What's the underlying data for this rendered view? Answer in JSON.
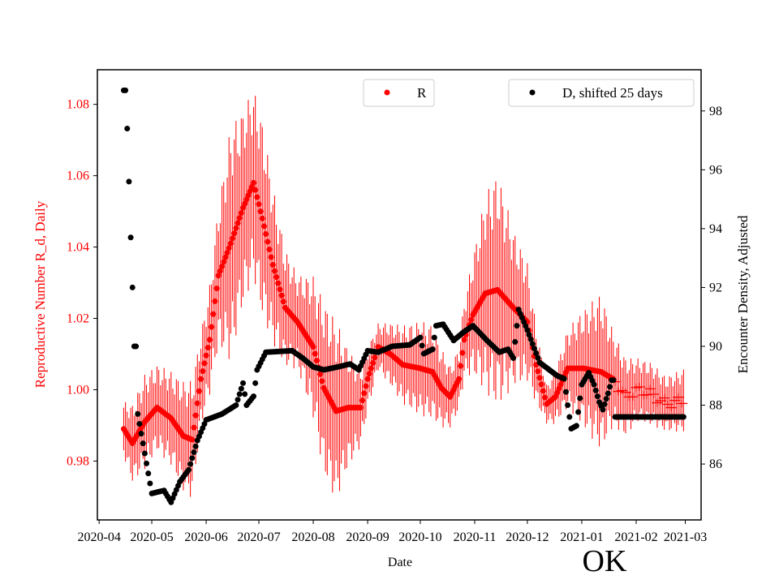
{
  "chart_data": {
    "type": "scatter",
    "title": "OK",
    "xlabel": "Date",
    "ylabel_left": "Reproductive Number R_d, Daily",
    "ylabel_right": "Encounter Density, Adjusted",
    "xlim": [
      "2020-03-31",
      "2021-03-10"
    ],
    "ylim_left": [
      0.9635,
      1.0897
    ],
    "ylim_right": [
      84.1,
      99.4
    ],
    "x_ticks": [
      "2020-04",
      "2020-05",
      "2020-06",
      "2020-07",
      "2020-08",
      "2020-09",
      "2020-10",
      "2020-11",
      "2020-12",
      "2021-01",
      "2021-02",
      "2021-03"
    ],
    "y_ticks_left": [
      "0.98",
      "1.00",
      "1.02",
      "1.04",
      "1.06",
      "1.08"
    ],
    "y_ticks_right": [
      "86",
      "88",
      "90",
      "92",
      "94",
      "96",
      "98"
    ],
    "grid": false,
    "legend": [
      {
        "label": "R",
        "placement": "top-center"
      },
      {
        "label": "D, shifted 25 days",
        "placement": "top-right"
      }
    ],
    "colors": {
      "R": "#ff0000",
      "D": "#000000",
      "left_axis": "#ff0000",
      "right_axis": "#000000"
    },
    "series": [
      {
        "name": "R",
        "axis": "left",
        "points": [
          [
            "2020-04-15",
            0.989,
            0.007
          ],
          [
            "2020-04-20",
            0.985,
            0.01
          ],
          [
            "2020-04-27",
            0.991,
            0.012
          ],
          [
            "2020-05-04",
            0.995,
            0.011
          ],
          [
            "2020-05-12",
            0.992,
            0.012
          ],
          [
            "2020-05-19",
            0.987,
            0.014
          ],
          [
            "2020-05-24",
            0.986,
            0.015
          ],
          [
            "2020-05-29",
            1.003,
            0.012
          ],
          [
            "2020-06-03",
            1.014,
            0.014
          ],
          [
            "2020-06-08",
            1.032,
            0.018
          ],
          [
            "2020-06-15",
            1.041,
            0.03
          ],
          [
            "2020-06-22",
            1.051,
            0.025
          ],
          [
            "2020-06-28",
            1.058,
            0.024
          ],
          [
            "2020-07-03",
            1.048,
            0.025
          ],
          [
            "2020-07-09",
            1.035,
            0.02
          ],
          [
            "2020-07-16",
            1.023,
            0.015
          ],
          [
            "2020-07-23",
            1.019,
            0.012
          ],
          [
            "2020-08-01",
            1.012,
            0.018
          ],
          [
            "2020-08-07",
            1.0005,
            0.022
          ],
          [
            "2020-08-14",
            0.994,
            0.023
          ],
          [
            "2020-08-21",
            0.995,
            0.015
          ],
          [
            "2020-08-28",
            0.995,
            0.01
          ],
          [
            "2020-09-01",
            1.003,
            0.008
          ],
          [
            "2020-09-07",
            1.012,
            0.006
          ],
          [
            "2020-09-14",
            1.01,
            0.008
          ],
          [
            "2020-09-21",
            1.007,
            0.01
          ],
          [
            "2020-10-01",
            1.006,
            0.012
          ],
          [
            "2020-10-08",
            1.005,
            0.012
          ],
          [
            "2020-10-13",
            1.0005,
            0.01
          ],
          [
            "2020-10-18",
            0.998,
            0.008
          ],
          [
            "2020-10-23",
            1.003,
            0.008
          ],
          [
            "2020-10-26",
            1.014,
            0.01
          ],
          [
            "2020-10-31",
            1.021,
            0.015
          ],
          [
            "2020-11-07",
            1.027,
            0.025
          ],
          [
            "2020-11-14",
            1.028,
            0.03
          ],
          [
            "2020-11-23",
            1.023,
            0.02
          ],
          [
            "2020-12-01",
            1.019,
            0.015
          ],
          [
            "2020-12-06",
            1.007,
            0.01
          ],
          [
            "2020-12-12",
            0.996,
            0.005
          ],
          [
            "2020-12-17",
            0.998,
            0.007
          ],
          [
            "2020-12-24",
            1.006,
            0.01
          ],
          [
            "2021-01-02",
            1.006,
            0.015
          ],
          [
            "2021-01-12",
            1.005,
            0.02
          ],
          [
            "2021-01-19",
            1.003,
            0.012
          ],
          [
            "2021-01-26",
            0.998,
            0.01
          ],
          [
            "2021-02-02",
            1.0,
            0.008
          ],
          [
            "2021-02-09",
            0.999,
            0.008
          ],
          [
            "2021-02-18",
            0.996,
            0.007
          ],
          [
            "2021-02-28",
            0.997,
            0.008
          ]
        ]
      },
      {
        "name": "D, shifted 25 days",
        "axis": "right",
        "points": [
          [
            "2020-04-15",
            98.7
          ],
          [
            "2020-04-17",
            97.4
          ],
          [
            "2020-04-18",
            95.6
          ],
          [
            "2020-04-19",
            93.7
          ],
          [
            "2020-04-20",
            92.0
          ],
          [
            "2020-04-21",
            90.0
          ],
          [
            "2020-04-23",
            87.7
          ],
          [
            "2020-04-26",
            86.7
          ],
          [
            "2020-05-01",
            85.0
          ],
          [
            "2020-05-08",
            85.1
          ],
          [
            "2020-05-12",
            84.7
          ],
          [
            "2020-05-17",
            85.4
          ],
          [
            "2020-05-22",
            85.8
          ],
          [
            "2020-05-27",
            86.8
          ],
          [
            "2020-06-01",
            87.5
          ],
          [
            "2020-06-10",
            87.7
          ],
          [
            "2020-06-18",
            88.0
          ],
          [
            "2020-06-22",
            88.75
          ],
          [
            "2020-06-24",
            88.0
          ],
          [
            "2020-06-28",
            88.3
          ],
          [
            "2020-06-30",
            89.2
          ],
          [
            "2020-07-05",
            89.8
          ],
          [
            "2020-07-20",
            89.85
          ],
          [
            "2020-07-26",
            89.6
          ],
          [
            "2020-08-01",
            89.3
          ],
          [
            "2020-08-07",
            89.2
          ],
          [
            "2020-08-15",
            89.3
          ],
          [
            "2020-08-22",
            89.4
          ],
          [
            "2020-08-27",
            89.2
          ],
          [
            "2020-09-01",
            89.85
          ],
          [
            "2020-09-07",
            89.8
          ],
          [
            "2020-09-15",
            90.0
          ],
          [
            "2020-09-25",
            90.05
          ],
          [
            "2020-10-01",
            90.3
          ],
          [
            "2020-10-03",
            89.75
          ],
          [
            "2020-10-08",
            89.9
          ],
          [
            "2020-10-10",
            90.7
          ],
          [
            "2020-10-14",
            90.75
          ],
          [
            "2020-10-20",
            90.2
          ],
          [
            "2020-10-26",
            90.5
          ],
          [
            "2020-10-31",
            90.7
          ],
          [
            "2020-11-08",
            90.2
          ],
          [
            "2020-11-15",
            89.8
          ],
          [
            "2020-11-20",
            89.9
          ],
          [
            "2020-11-23",
            89.6
          ],
          [
            "2020-11-26",
            91.25
          ],
          [
            "2020-12-01",
            90.55
          ],
          [
            "2020-12-08",
            89.45
          ],
          [
            "2020-12-18",
            89.0
          ],
          [
            "2020-12-22",
            88.9
          ],
          [
            "2020-12-24",
            88.0
          ],
          [
            "2020-12-26",
            87.2
          ],
          [
            "2020-12-29",
            87.3
          ],
          [
            "2021-01-01",
            88.7
          ],
          [
            "2021-01-05",
            89.1
          ],
          [
            "2021-01-08",
            88.7
          ],
          [
            "2021-01-11",
            88.1
          ],
          [
            "2021-01-13",
            87.85
          ],
          [
            "2021-01-16",
            88.4
          ],
          [
            "2021-01-18",
            88.85
          ],
          [
            "2021-01-20",
            87.6
          ],
          [
            "2021-02-28",
            87.6
          ]
        ]
      }
    ]
  }
}
